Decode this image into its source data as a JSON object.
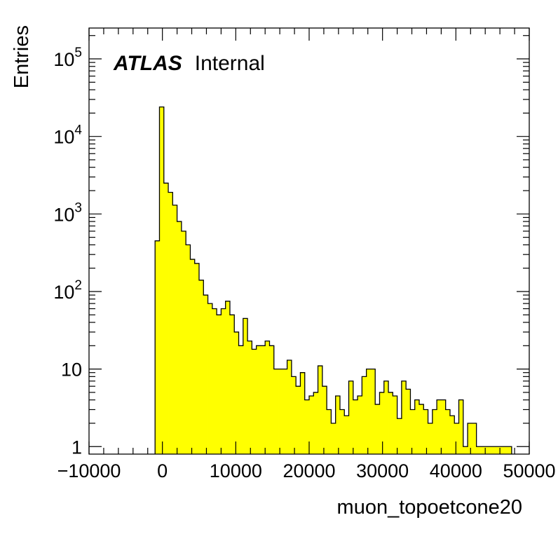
{
  "chart_data": {
    "type": "bar",
    "style": "step-histogram",
    "xlabel": "muon_topoetcone20",
    "ylabel": "Entries",
    "xlim": [
      -10000,
      50000
    ],
    "ylim": [
      0.8,
      250000
    ],
    "log_y": true,
    "grid": false,
    "fill_color": "#ffff00",
    "line_color": "#000000",
    "bin_width": 600,
    "bin_start": -1000,
    "x_ticks": [
      {
        "value": -10000,
        "label": "−10000"
      },
      {
        "value": 0,
        "label": "0"
      },
      {
        "value": 10000,
        "label": "10000"
      },
      {
        "value": 20000,
        "label": "20000"
      },
      {
        "value": 30000,
        "label": "30000"
      },
      {
        "value": 40000,
        "label": "40000"
      },
      {
        "value": 50000,
        "label": "50000"
      }
    ],
    "y_ticks": [
      {
        "value": 1,
        "base": "1",
        "exp": ""
      },
      {
        "value": 10,
        "base": "10",
        "exp": ""
      },
      {
        "value": 100,
        "base": "10",
        "exp": "2"
      },
      {
        "value": 1000,
        "base": "10",
        "exp": "3"
      },
      {
        "value": 10000,
        "base": "10",
        "exp": "4"
      },
      {
        "value": 100000,
        "base": "10",
        "exp": "5"
      }
    ],
    "values": [
      450,
      24000,
      2500,
      1900,
      1300,
      800,
      600,
      400,
      260,
      230,
      140,
      90,
      70,
      60,
      50,
      60,
      75,
      50,
      30,
      20,
      45,
      23,
      18,
      20,
      20,
      23,
      20,
      10,
      10,
      10,
      13,
      8,
      6,
      9,
      4,
      4.5,
      5,
      11,
      6,
      3,
      2,
      4.5,
      3,
      2.5,
      7,
      4,
      4.5,
      8,
      10,
      10,
      3.5,
      5,
      7,
      5,
      4.5,
      2.3,
      7,
      5.5,
      3,
      4,
      3.5,
      3,
      2,
      3,
      4,
      4,
      3,
      2.5,
      2,
      4,
      1,
      2,
      2,
      1,
      1,
      1,
      1,
      1,
      1,
      1,
      1
    ],
    "annotations": [
      {
        "text_bold": "ATLAS",
        "text": "Internal",
        "position": "top-left"
      }
    ]
  }
}
